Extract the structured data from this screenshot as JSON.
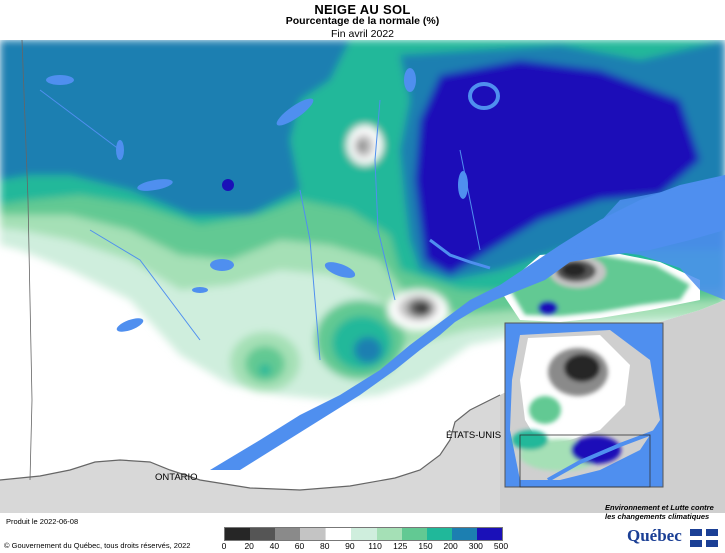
{
  "header": {
    "title": "NEIGE AU SOL",
    "subtitle": "Pourcentage de la normale (%)",
    "period": "Fin avril 2022"
  },
  "labels": {
    "etats_unis": "ÉTATS-UNIS",
    "ontario": "ONTARIO"
  },
  "footer": {
    "produced": "Produit le 2022-06-08",
    "copyright": "© Gouvernement du Québec, tous droits réservés, 2022",
    "ministry": "Environnement et Lutte contre les changements climatiques",
    "logo_text": "Québec"
  },
  "legend": {
    "ticks": [
      "0",
      "20",
      "40",
      "60",
      "80",
      "90",
      "110",
      "125",
      "150",
      "200",
      "300",
      "500"
    ],
    "colors": [
      "#262626",
      "#555555",
      "#8a8a8a",
      "#c4c4c4",
      "#ffffff",
      "#cfeedd",
      "#a5e0b6",
      "#62c993",
      "#20b89a",
      "#1c7fb1",
      "#1a10b8"
    ]
  },
  "colors": {
    "water": "#4f8fef",
    "land_outside": "#c8c8c8",
    "border": "#666666"
  }
}
